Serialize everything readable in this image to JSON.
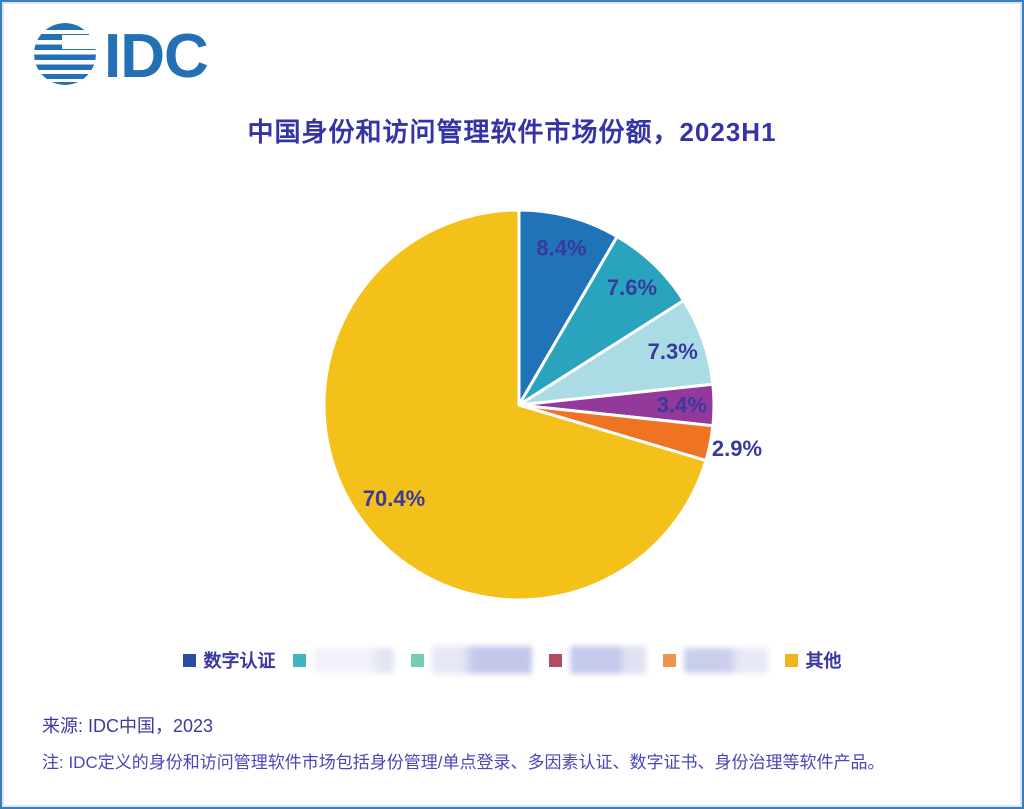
{
  "logo": {
    "text": "IDC",
    "color": "#2470B4"
  },
  "title": "中国身份和访问管理软件市场份额，2023H1",
  "chart_data": {
    "type": "pie",
    "title": "中国身份和访问管理软件市场份额，2023H1",
    "unit": "percent",
    "start_angle_deg": 0,
    "direction": "clockwise",
    "slice_border_color": "#FFFFFF",
    "label_color": "#39399E",
    "legend_position": "bottom",
    "slices": [
      {
        "label": "数字认证",
        "redacted": false,
        "value": 8.4,
        "display": "8.4%",
        "color": "#2173B7",
        "label_position": "inside"
      },
      {
        "label": "",
        "redacted": true,
        "value": 7.6,
        "display": "7.6%",
        "color": "#29A4BC",
        "label_position": "inside"
      },
      {
        "label": "",
        "redacted": true,
        "value": 7.3,
        "display": "7.3%",
        "color": "#ABDCE6",
        "label_position": "inside"
      },
      {
        "label": "",
        "redacted": true,
        "value": 3.4,
        "display": "3.4%",
        "color": "#93399B",
        "label_position": "inside"
      },
      {
        "label": "",
        "redacted": true,
        "value": 2.9,
        "display": "2.9%",
        "color": "#EE7322",
        "label_position": "outside"
      },
      {
        "label": "其他",
        "redacted": false,
        "value": 70.4,
        "display": "70.4%",
        "color": "#F3C119",
        "label_position": "inside"
      }
    ]
  },
  "legend": {
    "items": [
      {
        "label": "数字认证",
        "swatch": "#2B4D9E",
        "redacted": false
      },
      {
        "label": "",
        "swatch": "#3FB5C2",
        "redacted": true
      },
      {
        "label": "",
        "swatch": "#74CDB4",
        "redacted": true
      },
      {
        "label": "",
        "swatch": "#B04D62",
        "redacted": true
      },
      {
        "label": "",
        "swatch": "#E9984B",
        "redacted": true
      },
      {
        "label": "其他",
        "swatch": "#EFB51F",
        "redacted": false
      }
    ]
  },
  "footer": {
    "source": "来源: IDC中国，2023",
    "note": "注: IDC定义的身份和访问管理软件市场包括身份管理/单点登录、多因素认证、数字证书、身份治理等软件产品。"
  }
}
